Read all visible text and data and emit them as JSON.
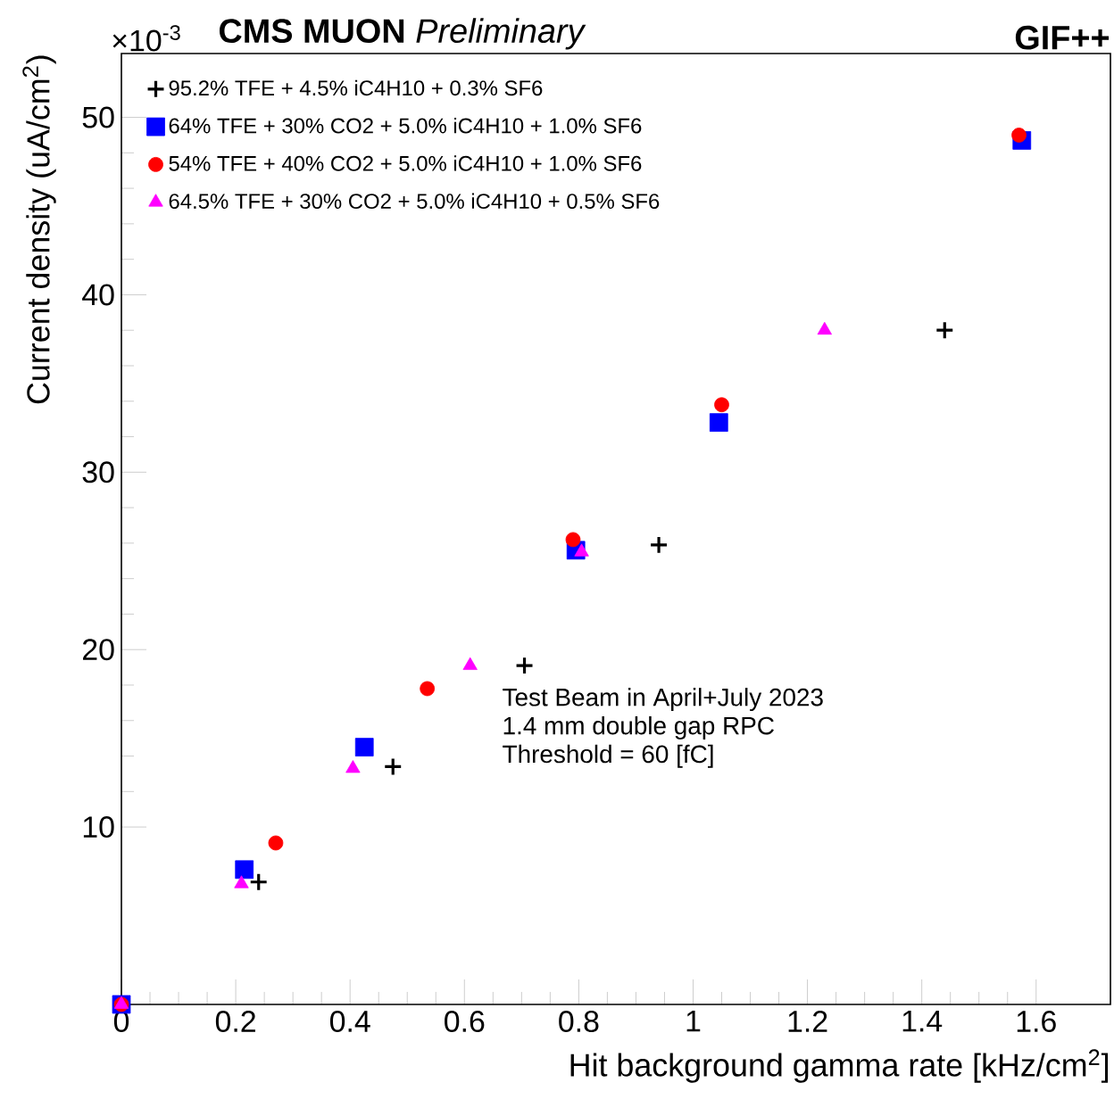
{
  "chart_data": {
    "type": "scatter",
    "title": "**CMS MUON** *Preliminary*",
    "subtitle": "GIF++",
    "xlabel": "Hit background gamma rate [kHz/cm$^{2}$]",
    "ylabel": "Current density (uA/cm$^{2}$)",
    "annotations": [
      "Test Beam in April+July 2023",
      "1.4 mm double gap RPC",
      "Threshold = 60 [fC]",
      "×10$^{-3}$"
    ],
    "xlim": [
      0,
      1.73
    ],
    "ylim": [
      0,
      53.6
    ],
    "xticks": [
      0,
      0.2,
      0.4,
      0.6,
      0.8,
      1,
      1.2,
      1.4,
      1.6
    ],
    "yticks": [
      10,
      20,
      30,
      40,
      50
    ],
    "grid": false,
    "legend": "top left",
    "series": [
      {
        "name": "95.2% TFE + 4.5% iC4H10 + 0.3% SF6",
        "color": "#000000",
        "marker": "cross",
        "x": [
          0.24,
          0.475,
          0.705,
          0.94,
          1.44
        ],
        "values": [
          6.9,
          13.4,
          19.1,
          25.9,
          38.0
        ]
      },
      {
        "name": "64% TFE + 30% CO2 + 5.0% iC4H10 + 1.0% SF6",
        "color": "#0000ff",
        "marker": "square",
        "x": [
          0,
          0.215,
          0.425,
          0.795,
          1.045,
          1.575
        ],
        "values": [
          0,
          7.6,
          14.5,
          25.6,
          32.8,
          48.7
        ]
      },
      {
        "name": "54% TFE + 40% CO2 + 5.0% iC4H10 + 1.0% SF6",
        "color": "#ff0000",
        "marker": "circle",
        "x": [
          0,
          0.27,
          0.535,
          0.79,
          1.05,
          1.57
        ],
        "values": [
          0,
          9.1,
          17.8,
          26.2,
          33.8,
          49.0
        ]
      },
      {
        "name": "64.5% TFE + 30% CO2 + 5.0% iC4H10 + 0.5% SF6",
        "color": "#ff00ff",
        "marker": "triangle",
        "x": [
          0,
          0.21,
          0.405,
          0.61,
          0.805,
          1.23
        ],
        "values": [
          0,
          6.8,
          13.3,
          19.1,
          25.5,
          38.0
        ]
      }
    ]
  }
}
